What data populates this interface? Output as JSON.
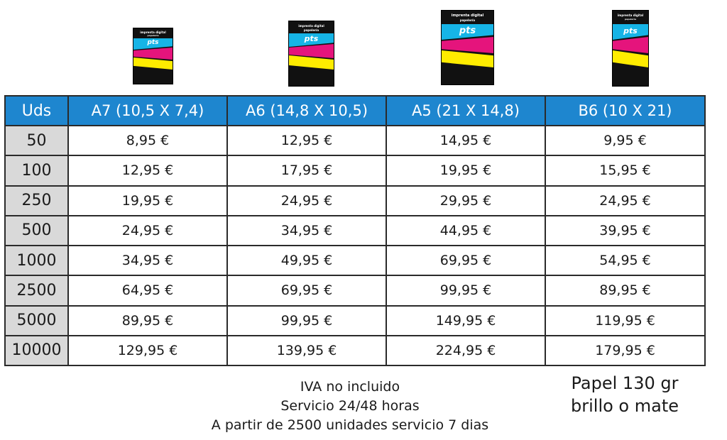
{
  "flyer": {
    "header_line1": "imprenta digital",
    "header_line2": "papelería",
    "logo_text": "pts",
    "colors": {
      "cyan": "#16b4e6",
      "magenta": "#e5147c",
      "yellow": "#ffec00",
      "black": "#111111"
    }
  },
  "table": {
    "header_color": "#1e86cf",
    "qty_cell_color": "#d9d9d9",
    "columns": [
      "Uds",
      "A7 (10,5 X 7,4)",
      "A6 (14,8 X 10,5)",
      "A5 (21 X 14,8)",
      "B6 (10 X 21)"
    ],
    "rows": [
      [
        "50",
        "8,95 €",
        "12,95 €",
        "14,95 €",
        "9,95 €"
      ],
      [
        "100",
        "12,95 €",
        "17,95 €",
        "19,95 €",
        "15,95 €"
      ],
      [
        "250",
        "19,95 €",
        "24,95 €",
        "29,95 €",
        "24,95 €"
      ],
      [
        "500",
        "24,95 €",
        "34,95 €",
        "44,95 €",
        "39,95 €"
      ],
      [
        "1000",
        "34,95 €",
        "49,95 €",
        "69,95 €",
        "54,95 €"
      ],
      [
        "2500",
        "64,95 €",
        "69,95 €",
        "99,95 €",
        "89,95 €"
      ],
      [
        "5000",
        "89,95 €",
        "99,95 €",
        "149,95 €",
        "119,95 €"
      ],
      [
        "10000",
        "129,95 €",
        "139,95 €",
        "224,95 €",
        "179,95 €"
      ]
    ]
  },
  "notes": {
    "line1": "IVA no incluido",
    "line2": "Servicio 24/48 horas",
    "line3": "A partir de 2500 unidades servicio 7 dias"
  },
  "paper": {
    "line1": "Papel 130 gr",
    "line2": "brillo o mate"
  }
}
